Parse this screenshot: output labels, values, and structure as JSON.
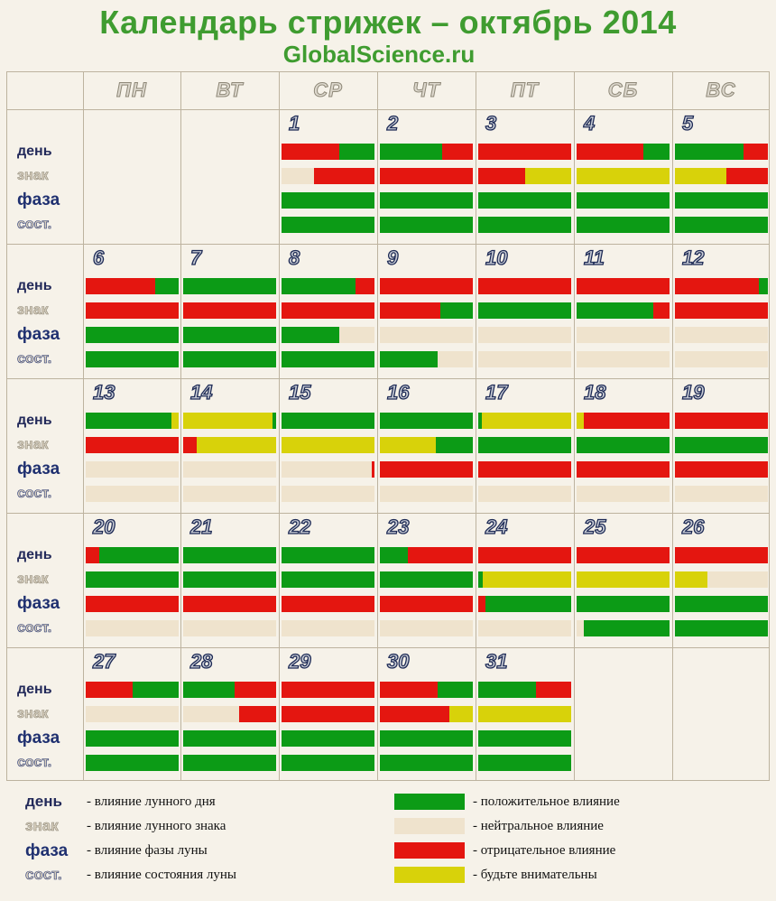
{
  "header": {
    "title": "Календарь стрижек – октябрь 2014",
    "subtitle": "GlobalScience.ru"
  },
  "colors": {
    "green": "#0c9b16",
    "red": "#e41610",
    "yellow": "#d8d20a",
    "neutral": "#efe3cd",
    "background": "#f6f2e9",
    "title": "#3f9c30"
  },
  "weekdays": [
    "ПН",
    "ВТ",
    "СР",
    "ЧТ",
    "ПТ",
    "СБ",
    "ВС"
  ],
  "row_labels": [
    "день",
    "знак",
    "фаза",
    "сост."
  ],
  "calendar": {
    "weeks": [
      [
        null,
        null,
        {
          "day": "1",
          "bars": [
            [
              "r",
              0.62,
              "g",
              0.38
            ],
            [
              "n",
              0.35,
              "r",
              0.65
            ],
            [
              "g",
              1
            ],
            [
              "g",
              1
            ]
          ]
        },
        {
          "day": "2",
          "bars": [
            [
              "g",
              0.67,
              "r",
              0.33
            ],
            [
              "r",
              1
            ],
            [
              "g",
              1
            ],
            [
              "g",
              1
            ]
          ]
        },
        {
          "day": "3",
          "bars": [
            [
              "r",
              1
            ],
            [
              "r",
              0.5,
              "y",
              0.5
            ],
            [
              "g",
              1
            ],
            [
              "g",
              1
            ]
          ]
        },
        {
          "day": "4",
          "bars": [
            [
              "r",
              0.72,
              "g",
              0.28
            ],
            [
              "y",
              1
            ],
            [
              "g",
              1
            ],
            [
              "g",
              1
            ]
          ]
        },
        {
          "day": "5",
          "bars": [
            [
              "g",
              0.74,
              "r",
              0.26
            ],
            [
              "y",
              0.55,
              "r",
              0.45
            ],
            [
              "g",
              1
            ],
            [
              "g",
              1
            ]
          ]
        }
      ],
      [
        {
          "day": "6",
          "bars": [
            [
              "r",
              0.75,
              "g",
              0.25
            ],
            [
              "r",
              1
            ],
            [
              "g",
              1
            ],
            [
              "g",
              1
            ]
          ]
        },
        {
          "day": "7",
          "bars": [
            [
              "g",
              1
            ],
            [
              "r",
              1
            ],
            [
              "g",
              1
            ],
            [
              "g",
              1
            ]
          ]
        },
        {
          "day": "8",
          "bars": [
            [
              "g",
              0.8,
              "r",
              0.2
            ],
            [
              "r",
              1
            ],
            [
              "g",
              0.62,
              "n",
              0.38
            ],
            [
              "g",
              1
            ]
          ]
        },
        {
          "day": "9",
          "bars": [
            [
              "r",
              1
            ],
            [
              "r",
              0.65,
              "g",
              0.35
            ],
            [
              "n",
              1
            ],
            [
              "g",
              0.62,
              "n",
              0.38
            ]
          ]
        },
        {
          "day": "10",
          "bars": [
            [
              "r",
              1
            ],
            [
              "g",
              1
            ],
            [
              "n",
              1
            ],
            [
              "n",
              1
            ]
          ]
        },
        {
          "day": "11",
          "bars": [
            [
              "r",
              1
            ],
            [
              "g",
              0.83,
              "r",
              0.17
            ],
            [
              "n",
              1
            ],
            [
              "n",
              1
            ]
          ]
        },
        {
          "day": "12",
          "bars": [
            [
              "r",
              0.9,
              "g",
              0.1
            ],
            [
              "r",
              1
            ],
            [
              "n",
              1
            ],
            [
              "n",
              1
            ]
          ]
        }
      ],
      [
        {
          "day": "13",
          "bars": [
            [
              "g",
              0.92,
              "y",
              0.08
            ],
            [
              "r",
              1
            ],
            [
              "n",
              1
            ],
            [
              "n",
              1
            ]
          ]
        },
        {
          "day": "14",
          "bars": [
            [
              "y",
              0.96,
              "g",
              0.04
            ],
            [
              "r",
              0.15,
              "y",
              0.85
            ],
            [
              "n",
              1
            ],
            [
              "n",
              1
            ]
          ]
        },
        {
          "day": "15",
          "bars": [
            [
              "g",
              1
            ],
            [
              "y",
              1
            ],
            [
              "n",
              0.97,
              "r",
              0.03
            ],
            [
              "n",
              1
            ]
          ]
        },
        {
          "day": "16",
          "bars": [
            [
              "g",
              1
            ],
            [
              "y",
              0.6,
              "g",
              0.4
            ],
            [
              "r",
              1
            ],
            [
              "n",
              1
            ]
          ]
        },
        {
          "day": "17",
          "bars": [
            [
              "g",
              0.04,
              "y",
              0.96
            ],
            [
              "g",
              1
            ],
            [
              "r",
              1
            ],
            [
              "n",
              1
            ]
          ]
        },
        {
          "day": "18",
          "bars": [
            [
              "y",
              0.08,
              "r",
              0.92
            ],
            [
              "g",
              1
            ],
            [
              "r",
              1
            ],
            [
              "n",
              1
            ]
          ]
        },
        {
          "day": "19",
          "bars": [
            [
              "r",
              1
            ],
            [
              "g",
              1
            ],
            [
              "r",
              1
            ],
            [
              "n",
              1
            ]
          ]
        }
      ],
      [
        {
          "day": "20",
          "bars": [
            [
              "r",
              0.15,
              "g",
              0.85
            ],
            [
              "g",
              1
            ],
            [
              "r",
              1
            ],
            [
              "n",
              1
            ]
          ]
        },
        {
          "day": "21",
          "bars": [
            [
              "g",
              1
            ],
            [
              "g",
              1
            ],
            [
              "r",
              1
            ],
            [
              "n",
              1
            ]
          ]
        },
        {
          "day": "22",
          "bars": [
            [
              "g",
              1
            ],
            [
              "g",
              1
            ],
            [
              "r",
              1
            ],
            [
              "n",
              1
            ]
          ]
        },
        {
          "day": "23",
          "bars": [
            [
              "g",
              0.3,
              "r",
              0.7
            ],
            [
              "g",
              1
            ],
            [
              "r",
              1
            ],
            [
              "n",
              1
            ]
          ]
        },
        {
          "day": "24",
          "bars": [
            [
              "r",
              1
            ],
            [
              "g",
              0.05,
              "y",
              0.95
            ],
            [
              "r",
              0.08,
              "g",
              0.92
            ],
            [
              "n",
              1
            ]
          ]
        },
        {
          "day": "25",
          "bars": [
            [
              "r",
              1
            ],
            [
              "y",
              1
            ],
            [
              "g",
              1
            ],
            [
              "n",
              0.08,
              "g",
              0.92
            ]
          ]
        },
        {
          "day": "26",
          "bars": [
            [
              "r",
              1
            ],
            [
              "y",
              0.35,
              "n",
              0.65
            ],
            [
              "g",
              1
            ],
            [
              "g",
              1
            ]
          ]
        }
      ],
      [
        {
          "day": "27",
          "bars": [
            [
              "r",
              0.5,
              "g",
              0.5
            ],
            [
              "n",
              1
            ],
            [
              "g",
              1
            ],
            [
              "g",
              1
            ]
          ]
        },
        {
          "day": "28",
          "bars": [
            [
              "g",
              0.55,
              "r",
              0.45
            ],
            [
              "n",
              0.6,
              "r",
              0.4
            ],
            [
              "g",
              1
            ],
            [
              "g",
              1
            ]
          ]
        },
        {
          "day": "29",
          "bars": [
            [
              "r",
              1
            ],
            [
              "r",
              1
            ],
            [
              "g",
              1
            ],
            [
              "g",
              1
            ]
          ]
        },
        {
          "day": "30",
          "bars": [
            [
              "r",
              0.62,
              "g",
              0.38
            ],
            [
              "r",
              0.75,
              "y",
              0.25
            ],
            [
              "g",
              1
            ],
            [
              "g",
              1
            ]
          ]
        },
        {
          "day": "31",
          "bars": [
            [
              "g",
              0.62,
              "r",
              0.38
            ],
            [
              "y",
              1
            ],
            [
              "g",
              1
            ],
            [
              "g",
              1
            ]
          ]
        },
        null,
        null
      ]
    ]
  },
  "legend": {
    "rows": [
      {
        "label": "день",
        "text": "- влияние лунного дня"
      },
      {
        "label": "знак",
        "text": "- влияние лунного знака"
      },
      {
        "label": "фаза",
        "text": "- влияние фазы луны"
      },
      {
        "label": "сост.",
        "text": "- влияние состояния луны"
      }
    ],
    "colors": [
      {
        "color": "g",
        "text": "- положительное влияние"
      },
      {
        "color": "n",
        "text": "- нейтральное влияние"
      },
      {
        "color": "r",
        "text": "- отрицательное влияние"
      },
      {
        "color": "y",
        "text": "- будьте внимательны"
      }
    ]
  }
}
